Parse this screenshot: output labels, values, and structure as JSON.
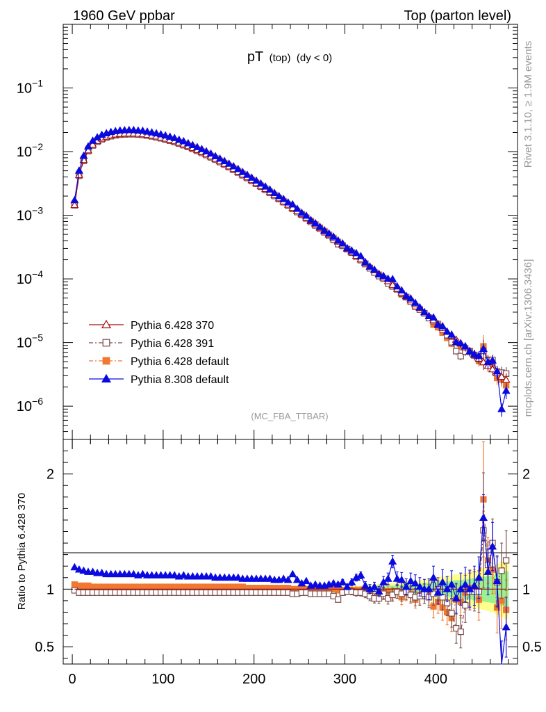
{
  "header": {
    "left": "1960 GeV ppbar",
    "right": "Top (parton level)"
  },
  "side_labels": {
    "top": "Rivet 3.1.10, ≥ 1.9M events",
    "bottom": "mcplots.cern.ch [arXiv:1306.3436]"
  },
  "chart_data": {
    "type": "line",
    "title_main": "pT",
    "title_sub": "(top)",
    "title_suffix": "(dy < 0)",
    "analysis": "(MC_FBA_TTBAR)",
    "ratio_ylabel": "Ratio to Pythia 6.428 370",
    "yscale": "log",
    "xlim": [
      -10,
      490
    ],
    "ylim": [
      3e-07,
      1
    ],
    "ratio_ylim": [
      0.35,
      2.3
    ],
    "x_ticks": [
      0,
      100,
      200,
      300,
      400
    ],
    "y_ticks": [
      {
        "base": "10",
        "exp": "−1"
      },
      {
        "base": "10",
        "exp": "−2"
      },
      {
        "base": "10",
        "exp": "−3"
      },
      {
        "base": "10",
        "exp": "−4"
      },
      {
        "base": "10",
        "exp": "−5"
      },
      {
        "base": "10",
        "exp": "−6"
      }
    ],
    "ratio_ticks": [
      "2",
      "1",
      "0.5"
    ],
    "ratio_tick_values": [
      2,
      1,
      0.5
    ],
    "x": [
      2.5,
      7.5,
      12.5,
      17.5,
      22.5,
      27.5,
      32.5,
      37.5,
      42.5,
      47.5,
      52.5,
      57.5,
      62.5,
      67.5,
      72.5,
      77.5,
      82.5,
      87.5,
      92.5,
      97.5,
      102.5,
      107.5,
      112.5,
      117.5,
      122.5,
      127.5,
      132.5,
      137.5,
      142.5,
      147.5,
      152.5,
      157.5,
      162.5,
      167.5,
      172.5,
      177.5,
      182.5,
      187.5,
      192.5,
      197.5,
      202.5,
      207.5,
      212.5,
      217.5,
      222.5,
      227.5,
      232.5,
      237.5,
      242.5,
      247.5,
      252.5,
      257.5,
      262.5,
      267.5,
      272.5,
      277.5,
      282.5,
      287.5,
      292.5,
      297.5,
      302.5,
      307.5,
      312.5,
      317.5,
      322.5,
      327.5,
      332.5,
      337.5,
      342.5,
      347.5,
      352.5,
      357.5,
      362.5,
      367.5,
      372.5,
      377.5,
      382.5,
      387.5,
      392.5,
      397.5,
      402.5,
      407.5,
      412.5,
      417.5,
      422.5,
      427.5,
      432.5,
      437.5,
      442.5,
      447.5,
      452.5,
      457.5,
      462.5,
      467.5,
      472.5,
      477.5
    ],
    "reference": [
      0.00145,
      0.0043,
      0.0074,
      0.0105,
      0.0129,
      0.0147,
      0.0161,
      0.0172,
      0.018,
      0.0186,
      0.019,
      0.0192,
      0.0193,
      0.0193,
      0.0191,
      0.0188,
      0.0184,
      0.0179,
      0.0173,
      0.0167,
      0.016,
      0.0153,
      0.0146,
      0.0138,
      0.013,
      0.0122,
      0.0114,
      0.0106,
      0.00985,
      0.0091,
      0.00838,
      0.0077,
      0.00705,
      0.00644,
      0.00587,
      0.00534,
      0.00484,
      0.00438,
      0.00396,
      0.00357,
      0.00321,
      0.00289,
      0.00259,
      0.00232,
      0.00207,
      0.00185,
      0.00165,
      0.00147,
      0.00131,
      0.00117,
      0.00104,
      0.000921,
      0.000816,
      0.000722,
      0.000638,
      0.000563,
      0.000497,
      0.000438,
      0.000386,
      0.00034,
      0.000299,
      0.000263,
      0.000231,
      0.000203,
      0.000178,
      0.000156,
      0.000137,
      0.00012,
      0.000105,
      9.2e-05,
      8e-05,
      7e-05,
      6.1e-05,
      5.3e-05,
      4.6e-05,
      4e-05,
      3.5e-05,
      3e-05,
      2.6e-05,
      2.25e-05,
      1.95e-05,
      1.7e-05,
      1.48e-05,
      1.28e-05,
      1.11e-05,
      9.7e-06,
      8.4e-06,
      7.3e-06,
      6.4e-06,
      5.6e-06,
      4.9e-06,
      4.3e-06,
      3.8e-06,
      3.3e-06,
      2.9e-06,
      2.6e-06
    ],
    "series": [
      {
        "name": "Pythia 6.428 370",
        "color": "#a01010",
        "marker": "triangle-open",
        "dash": "",
        "ratio": [
          1,
          1,
          1,
          1,
          1,
          1,
          1,
          1,
          1,
          1,
          1,
          1,
          1,
          1,
          1,
          1,
          1,
          1,
          1,
          1,
          1,
          1,
          1,
          1,
          1,
          1,
          1,
          1,
          1,
          1,
          1,
          1,
          1,
          1,
          1,
          1,
          1,
          1,
          1,
          1,
          1,
          1,
          1,
          1,
          1,
          1,
          1,
          1,
          1,
          1,
          1,
          1,
          1,
          1,
          1,
          1,
          1,
          1,
          1,
          1,
          1,
          1,
          1,
          1,
          1,
          1,
          1,
          1,
          1,
          1,
          1,
          1,
          1,
          1,
          1,
          1,
          1,
          1,
          1,
          1,
          1,
          1,
          1,
          1,
          1,
          1,
          1,
          1,
          1,
          1,
          1,
          1,
          1,
          1,
          1,
          1
        ],
        "band": [
          0.01,
          0.01,
          0.01,
          0.01,
          0.01,
          0.01,
          0.01,
          0.01,
          0.01,
          0.01,
          0.01,
          0.01,
          0.01,
          0.01,
          0.01,
          0.01,
          0.01,
          0.01,
          0.01,
          0.01,
          0.01,
          0.01,
          0.01,
          0.01,
          0.01,
          0.01,
          0.01,
          0.01,
          0.01,
          0.01,
          0.01,
          0.01,
          0.01,
          0.01,
          0.01,
          0.01,
          0.01,
          0.01,
          0.01,
          0.01,
          0.01,
          0.01,
          0.01,
          0.01,
          0.01,
          0.01,
          0.01,
          0.01,
          0.01,
          0.01,
          0.01,
          0.01,
          0.015,
          0.015,
          0.015,
          0.02,
          0.02,
          0.02,
          0.025,
          0.025,
          0.025,
          0.03,
          0.03,
          0.035,
          0.035,
          0.04,
          0.04,
          0.045,
          0.05,
          0.05,
          0.055,
          0.06,
          0.065,
          0.07,
          0.07,
          0.075,
          0.08,
          0.085,
          0.09,
          0.1,
          0.1,
          0.11,
          0.11,
          0.12,
          0.13,
          0.13,
          0.14,
          0.15,
          0.16,
          0.17,
          0.18,
          0.19,
          0.2,
          0.22,
          0.24,
          0.26
        ]
      },
      {
        "name": "Pythia 6.428 391",
        "color": "#7a4a4a",
        "marker": "square-open",
        "dash": "6,3,2,3",
        "ratio": [
          0.99,
          0.97,
          0.97,
          0.97,
          0.97,
          0.97,
          0.97,
          0.97,
          0.97,
          0.97,
          0.97,
          0.97,
          0.97,
          0.97,
          0.97,
          0.97,
          0.97,
          0.97,
          0.97,
          0.97,
          0.97,
          0.97,
          0.97,
          0.97,
          0.97,
          0.97,
          0.97,
          0.97,
          0.97,
          0.97,
          0.97,
          0.97,
          0.97,
          0.97,
          0.97,
          0.97,
          0.97,
          0.97,
          0.97,
          0.97,
          0.97,
          0.97,
          0.97,
          0.97,
          0.97,
          0.97,
          0.97,
          0.97,
          0.96,
          0.96,
          0.97,
          0.97,
          0.96,
          0.96,
          0.96,
          0.96,
          0.96,
          0.94,
          0.91,
          0.97,
          0.98,
          0.98,
          0.97,
          0.97,
          0.96,
          0.94,
          0.92,
          0.92,
          0.96,
          0.92,
          0.95,
          0.98,
          0.96,
          0.98,
          0.95,
          0.93,
          0.94,
          0.96,
          0.93,
          0.96,
          1.0,
          0.93,
          0.88,
          0.79,
          0.66,
          0.63,
          0.86,
          0.98,
          0.98,
          0.98,
          1.51,
          1.21,
          1.4,
          1.06,
          1.16,
          1.25
        ],
        "err": [
          0.005,
          0.005,
          0.005,
          0.005,
          0.005,
          0.005,
          0.005,
          0.005,
          0.005,
          0.005,
          0.005,
          0.005,
          0.005,
          0.005,
          0.005,
          0.005,
          0.005,
          0.005,
          0.005,
          0.005,
          0.005,
          0.005,
          0.005,
          0.005,
          0.005,
          0.005,
          0.005,
          0.005,
          0.005,
          0.005,
          0.005,
          0.005,
          0.005,
          0.005,
          0.005,
          0.005,
          0.005,
          0.005,
          0.005,
          0.005,
          0.005,
          0.005,
          0.005,
          0.005,
          0.005,
          0.005,
          0.005,
          0.01,
          0.01,
          0.01,
          0.01,
          0.01,
          0.01,
          0.015,
          0.015,
          0.015,
          0.02,
          0.02,
          0.02,
          0.025,
          0.025,
          0.03,
          0.03,
          0.03,
          0.035,
          0.04,
          0.04,
          0.045,
          0.05,
          0.05,
          0.055,
          0.06,
          0.065,
          0.07,
          0.07,
          0.075,
          0.08,
          0.085,
          0.09,
          0.1,
          0.1,
          0.11,
          0.11,
          0.12,
          0.13,
          0.14,
          0.15,
          0.16,
          0.17,
          0.18,
          0.5,
          0.2,
          0.21,
          0.22,
          0.24,
          0.26
        ]
      },
      {
        "name": "Pythia 6.428 default",
        "color": "#f07830",
        "marker": "square-filled",
        "dash": "6,3,2,3",
        "ratio": [
          1.04,
          1.03,
          1.03,
          1.03,
          1.02,
          1.02,
          1.02,
          1.02,
          1.02,
          1.02,
          1.02,
          1.02,
          1.02,
          1.02,
          1.02,
          1.02,
          1.02,
          1.02,
          1.02,
          1.02,
          1.02,
          1.02,
          1.02,
          1.02,
          1.02,
          1.02,
          1.02,
          1.02,
          1.02,
          1.02,
          1.02,
          1.02,
          1.02,
          1.02,
          1.02,
          1.02,
          1.02,
          1.02,
          1.01,
          1.01,
          1.01,
          1.01,
          1.01,
          1.01,
          1.01,
          1.01,
          1.01,
          1.01,
          1.0,
          1.0,
          1.0,
          1.0,
          1.0,
          1.0,
          1.0,
          1.0,
          1.0,
          1.0,
          0.99,
          0.99,
          0.98,
          0.99,
          0.99,
          0.99,
          0.98,
          0.96,
          0.92,
          0.97,
          0.97,
          0.98,
          0.96,
          0.98,
          0.93,
          0.97,
          0.96,
          0.91,
          0.95,
          0.96,
          0.95,
          0.85,
          0.89,
          0.84,
          0.8,
          0.75,
          0.91,
          0.89,
          0.97,
          1.01,
          1.0,
          0.91,
          1.78,
          1.25,
          1.17,
          0.84,
          0.9,
          0.82
        ],
        "err": [
          0.005,
          0.005,
          0.005,
          0.005,
          0.005,
          0.005,
          0.005,
          0.005,
          0.005,
          0.005,
          0.005,
          0.005,
          0.005,
          0.005,
          0.005,
          0.005,
          0.005,
          0.005,
          0.005,
          0.005,
          0.005,
          0.005,
          0.005,
          0.005,
          0.005,
          0.005,
          0.005,
          0.005,
          0.005,
          0.005,
          0.005,
          0.005,
          0.005,
          0.005,
          0.005,
          0.005,
          0.005,
          0.005,
          0.005,
          0.005,
          0.005,
          0.005,
          0.005,
          0.005,
          0.005,
          0.005,
          0.005,
          0.01,
          0.01,
          0.01,
          0.01,
          0.01,
          0.01,
          0.015,
          0.015,
          0.015,
          0.02,
          0.02,
          0.02,
          0.025,
          0.025,
          0.03,
          0.03,
          0.03,
          0.035,
          0.04,
          0.04,
          0.045,
          0.05,
          0.05,
          0.055,
          0.06,
          0.065,
          0.07,
          0.07,
          0.075,
          0.08,
          0.085,
          0.09,
          0.1,
          0.1,
          0.11,
          0.11,
          0.12,
          0.13,
          0.14,
          0.15,
          0.16,
          0.17,
          0.18,
          0.5,
          0.2,
          0.21,
          0.22,
          0.24,
          0.26
        ]
      },
      {
        "name": "Pythia 8.308 default",
        "color": "#0a0ae0",
        "marker": "triangle-filled",
        "dash": "",
        "ratio": [
          1.19,
          1.17,
          1.16,
          1.15,
          1.15,
          1.14,
          1.14,
          1.13,
          1.13,
          1.13,
          1.13,
          1.13,
          1.13,
          1.13,
          1.12,
          1.13,
          1.12,
          1.12,
          1.12,
          1.12,
          1.12,
          1.12,
          1.12,
          1.11,
          1.12,
          1.11,
          1.11,
          1.11,
          1.11,
          1.11,
          1.11,
          1.1,
          1.1,
          1.1,
          1.1,
          1.1,
          1.1,
          1.09,
          1.09,
          1.09,
          1.09,
          1.09,
          1.09,
          1.09,
          1.08,
          1.08,
          1.09,
          1.08,
          1.13,
          1.08,
          1.05,
          1.07,
          1.03,
          1.04,
          1.03,
          1.03,
          1.04,
          1.05,
          1.04,
          1.06,
          1.02,
          1.06,
          1.1,
          1.12,
          1.03,
          1.0,
          1.02,
          0.98,
          1.06,
          1.09,
          1.24,
          1.09,
          1.08,
          1.02,
          1.07,
          1.05,
          1.02,
          1.0,
          1.0,
          1.1,
          0.97,
          1.06,
          1.0,
          1.04,
          0.92,
          1.0,
          1.04,
          1.0,
          1.03,
          1.1,
          1.62,
          1.15,
          1.37,
          1.07,
          0.31,
          0.67
        ],
        "err": [
          0.005,
          0.005,
          0.005,
          0.005,
          0.005,
          0.005,
          0.005,
          0.005,
          0.005,
          0.005,
          0.005,
          0.005,
          0.005,
          0.005,
          0.005,
          0.005,
          0.005,
          0.005,
          0.005,
          0.005,
          0.005,
          0.005,
          0.005,
          0.005,
          0.005,
          0.005,
          0.005,
          0.005,
          0.005,
          0.005,
          0.005,
          0.005,
          0.005,
          0.005,
          0.005,
          0.005,
          0.005,
          0.005,
          0.005,
          0.005,
          0.005,
          0.005,
          0.005,
          0.005,
          0.005,
          0.005,
          0.005,
          0.01,
          0.01,
          0.01,
          0.01,
          0.01,
          0.01,
          0.015,
          0.015,
          0.015,
          0.02,
          0.02,
          0.02,
          0.025,
          0.025,
          0.03,
          0.03,
          0.03,
          0.035,
          0.04,
          0.04,
          0.045,
          0.05,
          0.05,
          0.055,
          0.06,
          0.065,
          0.07,
          0.07,
          0.075,
          0.08,
          0.085,
          0.09,
          0.1,
          0.1,
          0.11,
          0.11,
          0.12,
          0.13,
          0.14,
          0.15,
          0.16,
          0.17,
          0.18,
          0.2,
          0.2,
          0.21,
          0.22,
          0.24,
          0.26
        ]
      }
    ]
  }
}
